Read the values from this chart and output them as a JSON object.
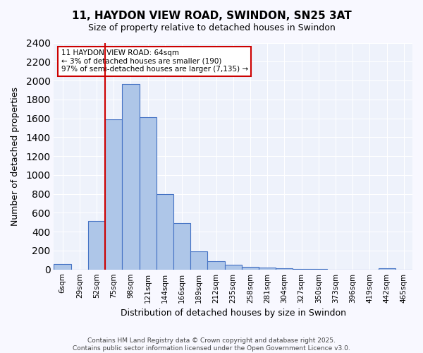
{
  "title": "11, HAYDON VIEW ROAD, SWINDON, SN25 3AT",
  "subtitle": "Size of property relative to detached houses in Swindon",
  "xlabel": "Distribution of detached houses by size in Swindon",
  "ylabel": "Number of detached properties",
  "categories": [
    "6sqm",
    "29sqm",
    "52sqm",
    "75sqm",
    "98sqm",
    "121sqm",
    "144sqm",
    "166sqm",
    "189sqm",
    "212sqm",
    "235sqm",
    "258sqm",
    "281sqm",
    "304sqm",
    "327sqm",
    "350sqm",
    "373sqm",
    "396sqm",
    "419sqm",
    "442sqm",
    "465sqm"
  ],
  "values": [
    55,
    0,
    510,
    1590,
    1960,
    1610,
    800,
    490,
    195,
    90,
    48,
    30,
    18,
    10,
    7,
    5,
    0,
    0,
    0,
    15,
    0
  ],
  "bar_color": "#aec6e8",
  "bar_edge_color": "#4472c4",
  "background_color": "#eef2fb",
  "grid_color": "#ffffff",
  "red_line_x": 2.5,
  "annotation_title": "11 HAYDON VIEW ROAD: 64sqm",
  "annotation_line1": "← 3% of detached houses are smaller (190)",
  "annotation_line2": "97% of semi-detached houses are larger (7,135) →",
  "annotation_box_color": "#ffffff",
  "annotation_box_edge": "#cc0000",
  "footer_line1": "Contains HM Land Registry data © Crown copyright and database right 2025.",
  "footer_line2": "Contains public sector information licensed under the Open Government Licence v3.0.",
  "ylim": [
    0,
    2400
  ],
  "yticks": [
    0,
    200,
    400,
    600,
    800,
    1000,
    1200,
    1400,
    1600,
    1800,
    2000,
    2200,
    2400
  ]
}
